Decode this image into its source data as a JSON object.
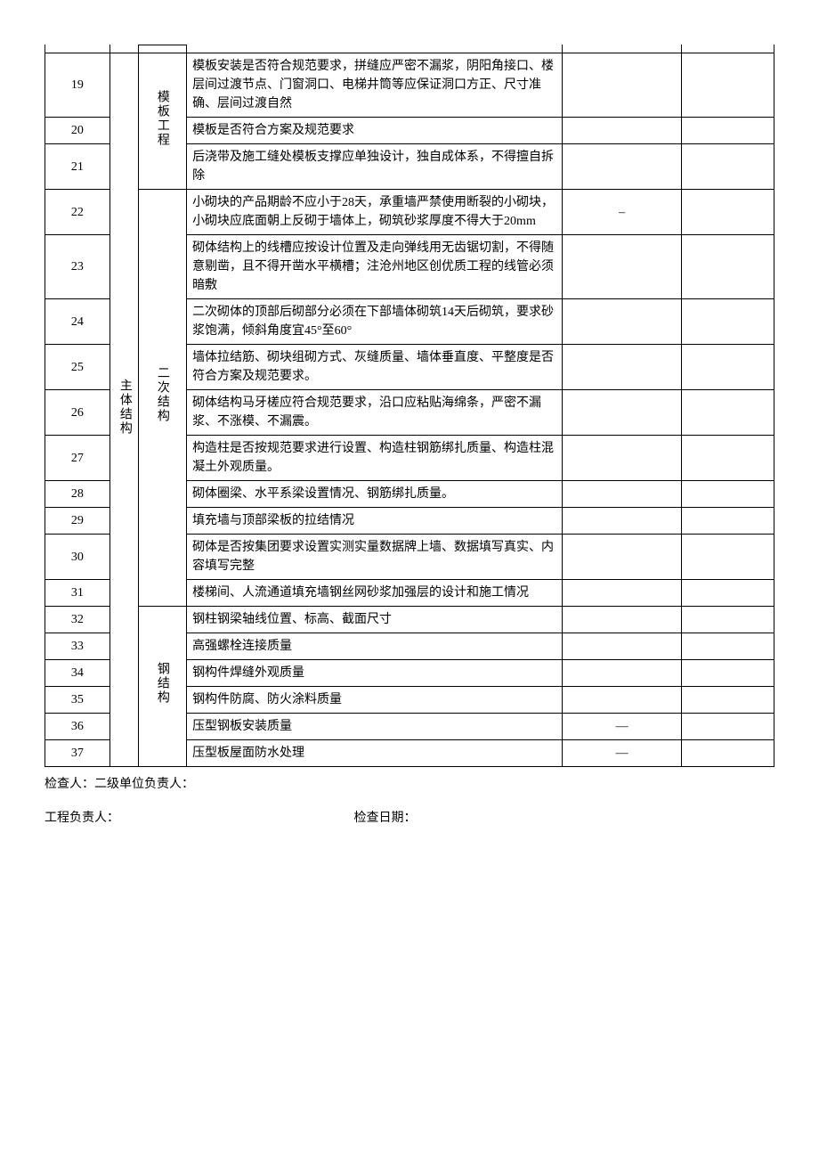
{
  "table": {
    "cat1_label": "主体结构",
    "groups": [
      {
        "label": "模板工程",
        "rows": [
          {
            "seq": "19",
            "content": "模板安装是否符合规范要求，拼缝应严密不漏浆，阴阳角接口、楼层间过渡节点、门窗洞口、电梯井筒等应保证洞口方正、尺寸准确、层间过渡自然",
            "r1": "",
            "r2": ""
          },
          {
            "seq": "20",
            "content": "模板是否符合方案及规范要求",
            "r1": "",
            "r2": ""
          },
          {
            "seq": "21",
            "content": "后浇带及施工缝处模板支撑应单独设计，独自成体系，不得擅自拆除",
            "r1": "",
            "r2": ""
          }
        ]
      },
      {
        "label": "二次结构",
        "rows": [
          {
            "seq": "22",
            "content": "小砌块的产品期龄不应小于28天，承重墙严禁使用断裂的小砌块，小砌块应底面朝上反砌于墙体上，砌筑砂浆厚度不得大于20mm",
            "r1": "–",
            "r2": ""
          },
          {
            "seq": "23",
            "content": "砌体结构上的线槽应按设计位置及走向弹线用无齿锯切割，不得随意剔凿，且不得开凿水平横槽；注沧州地区创优质工程的线管必须暗敷",
            "r1": "",
            "r2": ""
          },
          {
            "seq": "24",
            "content": "二次砌体的顶部后砌部分必须在下部墙体砌筑14天后砌筑，要求砂浆饱满，倾斜角度宜45°至60°",
            "r1": "",
            "r2": ""
          },
          {
            "seq": "25",
            "content": "墙体拉结筋、砌块组砌方式、灰缝质量、墙体垂直度、平整度是否符合方案及规范要求。",
            "r1": "",
            "r2": ""
          },
          {
            "seq": "26",
            "content": "砌体结构马牙槎应符合规范要求，沿口应粘贴海绵条，严密不漏浆、不涨模、不漏震。",
            "r1": "",
            "r2": ""
          },
          {
            "seq": "27",
            "content": "构造柱是否按规范要求进行设置、构造柱钢筋绑扎质量、构造柱混凝土外观质量。",
            "r1": "",
            "r2": ""
          },
          {
            "seq": "28",
            "content": "砌体圈梁、水平系梁设置情况、钢筋绑扎质量。",
            "r1": "",
            "r2": ""
          },
          {
            "seq": "29",
            "content": "填充墙与顶部梁板的拉结情况",
            "r1": "",
            "r2": ""
          },
          {
            "seq": "30",
            "content": "砌体是否按集团要求设置实测实量数据牌上墙、数据填写真实、内容填写完整",
            "r1": "",
            "r2": ""
          },
          {
            "seq": "31",
            "content": "楼梯间、人流通道填充墙钢丝网砂浆加强层的设计和施工情况",
            "r1": "",
            "r2": ""
          }
        ]
      },
      {
        "label": "钢结构",
        "rows": [
          {
            "seq": "32",
            "content": "钢柱钢梁轴线位置、标高、截面尺寸",
            "r1": "",
            "r2": ""
          },
          {
            "seq": "33",
            "content": "高强螺栓连接质量",
            "r1": "",
            "r2": ""
          },
          {
            "seq": "34",
            "content": "钢构件焊缝外观质量",
            "r1": "",
            "r2": ""
          },
          {
            "seq": "35",
            "content": "钢构件防腐、防火涂料质量",
            "r1": "",
            "r2": ""
          },
          {
            "seq": "36",
            "content": "压型钢板安装质量",
            "r1": "—",
            "r2": ""
          },
          {
            "seq": "37",
            "content": "压型板屋面防水处理",
            "r1": "—",
            "r2": ""
          }
        ]
      }
    ]
  },
  "footer": {
    "inspector_line": "检查人：二级单位负责人：",
    "project_manager": "工程负责人：",
    "inspection_date": "检查日期："
  },
  "style": {
    "font_family": "SimSun",
    "font_size_pt": 10.5,
    "border_color": "#000000",
    "background_color": "#ffffff",
    "text_color": "#000000"
  }
}
